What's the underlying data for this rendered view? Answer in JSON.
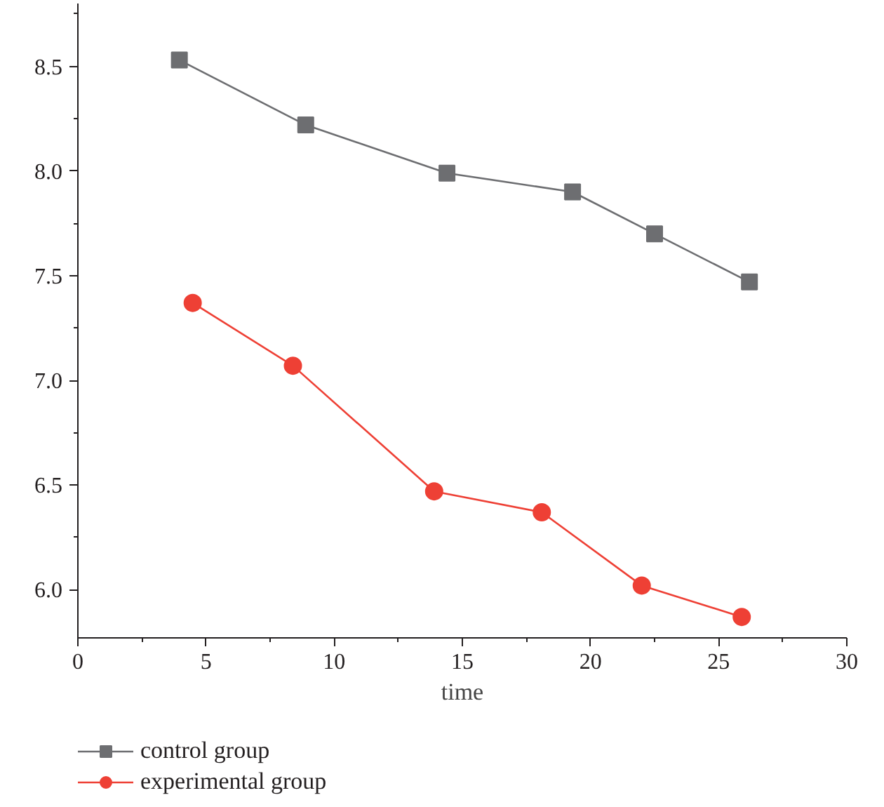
{
  "chart_data": {
    "type": "line",
    "xlabel": "time",
    "xlim": [
      0,
      30
    ],
    "xticks": [
      0,
      5,
      10,
      15,
      20,
      25,
      30
    ],
    "ylim": [
      5.77,
      8.8
    ],
    "yticks": [
      {
        "value": 6.0,
        "label": "6.0"
      },
      {
        "value": 6.5,
        "label": "6.5"
      },
      {
        "value": 7.0,
        "label": "7.0"
      },
      {
        "value": 7.5,
        "label": "7.5"
      },
      {
        "value": 8.0,
        "label": "8.0"
      },
      {
        "value": 8.5,
        "label": "8.5"
      }
    ],
    "grid": false,
    "legend": "bottom left",
    "series": [
      {
        "name": "control group",
        "color": "#6d6e71",
        "marker": "square",
        "x": [
          3.96,
          8.89,
          14.4,
          19.3,
          22.5,
          26.2
        ],
        "values": [
          8.53,
          8.22,
          7.99,
          7.9,
          7.7,
          7.47
        ]
      },
      {
        "name": "experimental group",
        "color": "#ee4035",
        "marker": "circle",
        "x": [
          4.48,
          8.39,
          13.9,
          18.1,
          22.0,
          25.9
        ],
        "values": [
          7.37,
          7.07,
          6.47,
          6.37,
          6.02,
          5.87
        ]
      }
    ]
  }
}
